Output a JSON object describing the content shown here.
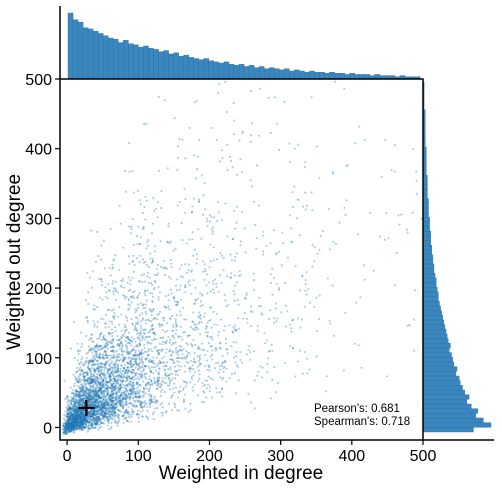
{
  "chart_data": {
    "type": "scatter",
    "title": "",
    "xlabel": "Weighted in degree",
    "ylabel": "Weighted out degree",
    "xlim": [
      -10,
      500
    ],
    "ylim": [
      -18,
      500
    ],
    "xticks": [
      "0",
      "100",
      "200",
      "300",
      "400",
      "500"
    ],
    "yticks": [
      "0",
      "100",
      "200",
      "300",
      "400",
      "500"
    ],
    "grid": false,
    "marker": {
      "x": 27,
      "y": 28,
      "symbol": "plus"
    },
    "annotations": [
      "Pearson's: 0.681",
      "Spearman's: 0.718"
    ],
    "point_color": "#1f77b4",
    "hist_color": "#3a87c0",
    "n_points": 4500,
    "correlation": 0.681,
    "top_hist_counts": [
      58,
      52,
      50,
      45,
      44,
      42,
      40,
      38,
      36,
      35,
      32,
      34,
      31,
      30,
      28,
      29,
      27,
      26,
      24,
      25,
      22,
      23,
      20,
      21,
      19,
      18,
      17,
      18,
      16,
      15,
      14,
      15,
      13,
      12,
      13,
      11,
      12,
      10,
      11,
      9,
      10,
      9,
      8,
      9,
      7,
      8,
      7,
      6,
      7,
      6,
      6,
      5,
      6,
      5,
      5,
      4,
      5,
      4,
      4,
      4,
      3,
      4,
      3,
      3,
      3,
      2,
      3,
      2,
      2,
      2
    ],
    "right_hist_counts": [
      46,
      62,
      55,
      48,
      50,
      44,
      40,
      42,
      38,
      36,
      34,
      33,
      30,
      31,
      28,
      27,
      26,
      24,
      25,
      23,
      22,
      21,
      20,
      19,
      18,
      17,
      16,
      15,
      14,
      14,
      13,
      12,
      12,
      11,
      10,
      10,
      9,
      9,
      8,
      8,
      7,
      7,
      7,
      6,
      6,
      6,
      5,
      5,
      5,
      5,
      4,
      4,
      4,
      4,
      4,
      3,
      3,
      3,
      3,
      3,
      3,
      2,
      2,
      2,
      2,
      2,
      2,
      2,
      2,
      1,
      1,
      1,
      1,
      1,
      1
    ]
  }
}
